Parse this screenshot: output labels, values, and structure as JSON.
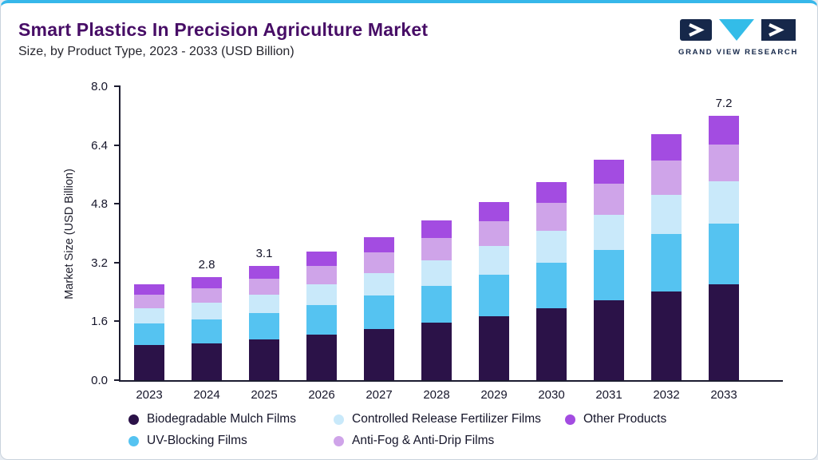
{
  "header": {
    "title": "Smart Plastics In Precision Agriculture Market",
    "subtitle": "Size, by Product Type, 2023 - 2033 (USD Billion)"
  },
  "logo": {
    "text": "GRAND VIEW RESEARCH",
    "navy": "#16284a",
    "cyan": "#33bce8"
  },
  "theme": {
    "accent_top_border": "#36b7ea",
    "title_color": "#470d66"
  },
  "chart_data": {
    "type": "bar",
    "stacked": true,
    "title": "Smart Plastics In Precision Agriculture Market Size, by Product Type, 2023 - 2033 (USD Billion)",
    "xlabel": "",
    "ylabel": "Market Size (USD Billion)",
    "ylim": [
      0,
      8.0
    ],
    "y_ticks": [
      "0.0",
      "1.6",
      "3.2",
      "4.8",
      "6.4",
      "8.0"
    ],
    "grid": false,
    "legend_position": "bottom",
    "categories": [
      "2023",
      "2024",
      "2025",
      "2026",
      "2027",
      "2028",
      "2029",
      "2030",
      "2031",
      "2032",
      "2033"
    ],
    "series": [
      {
        "name": "Biodegradable Mulch Films",
        "color": "#2b1248",
        "values": [
          0.95,
          1.0,
          1.1,
          1.25,
          1.4,
          1.57,
          1.75,
          1.95,
          2.17,
          2.42,
          2.6
        ]
      },
      {
        "name": "UV-Blocking Films",
        "color": "#55c3f1",
        "values": [
          0.6,
          0.65,
          0.72,
          0.8,
          0.9,
          1.0,
          1.12,
          1.25,
          1.38,
          1.55,
          1.66
        ]
      },
      {
        "name": "Controlled Release Fertilizer Films",
        "color": "#c9e9fa",
        "values": [
          0.4,
          0.45,
          0.5,
          0.56,
          0.62,
          0.7,
          0.78,
          0.86,
          0.96,
          1.07,
          1.15
        ]
      },
      {
        "name": "Anti-Fog & Anti-Drip Films",
        "color": "#cfa4e9",
        "values": [
          0.37,
          0.4,
          0.44,
          0.5,
          0.55,
          0.61,
          0.68,
          0.76,
          0.84,
          0.94,
          1.01
        ]
      },
      {
        "name": "Other Products",
        "color": "#a34ce1",
        "values": [
          0.28,
          0.3,
          0.34,
          0.39,
          0.43,
          0.47,
          0.52,
          0.58,
          0.65,
          0.72,
          0.78
        ]
      }
    ],
    "totals": [
      2.6,
      2.8,
      3.1,
      3.5,
      3.9,
      4.35,
      4.85,
      5.4,
      6.0,
      6.7,
      7.2
    ],
    "value_labels": [
      "",
      "2.8",
      "3.1",
      "",
      "",
      "",
      "",
      "",
      "",
      "",
      "7.2"
    ],
    "legend_rows": [
      [
        "Biodegradable Mulch Films",
        "Controlled Release Fertilizer Films",
        "Other Products"
      ],
      [
        "UV-Blocking Films",
        "Anti-Fog & Anti-Drip Films"
      ]
    ]
  }
}
